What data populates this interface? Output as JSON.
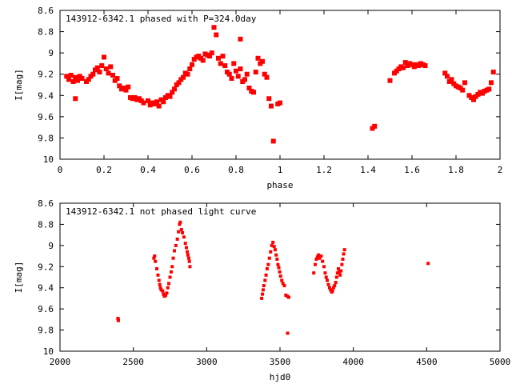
{
  "chart_data": [
    {
      "type": "scatter",
      "title": "143912-6342.1 phased with P=324.0day",
      "xlabel": "phase",
      "ylabel": "I[mag]",
      "xlim": [
        0,
        2
      ],
      "ylim": [
        10,
        8.6
      ],
      "y_inverted": true,
      "grid": false,
      "x_ticks": [
        "0",
        "0.2",
        "0.4",
        "0.6",
        "0.8",
        "1",
        "1.2",
        "1.4",
        "1.6",
        "1.8",
        "2"
      ],
      "y_ticks": [
        "8.6",
        "8.8",
        "9",
        "9.2",
        "9.4",
        "9.6",
        "9.8",
        "10"
      ],
      "series": [
        {
          "color": "#ff0000",
          "points": [
            [
              0.03,
              9.22
            ],
            [
              0.04,
              9.25
            ],
            [
              0.05,
              9.21
            ],
            [
              0.06,
              9.27
            ],
            [
              0.07,
              9.23
            ],
            [
              0.07,
              9.43
            ],
            [
              0.08,
              9.26
            ],
            [
              0.09,
              9.22
            ],
            [
              0.1,
              9.24
            ],
            [
              0.12,
              9.27
            ],
            [
              0.13,
              9.25
            ],
            [
              0.14,
              9.22
            ],
            [
              0.15,
              9.2
            ],
            [
              0.16,
              9.16
            ],
            [
              0.17,
              9.14
            ],
            [
              0.18,
              9.18
            ],
            [
              0.19,
              9.12
            ],
            [
              0.2,
              9.04
            ],
            [
              0.21,
              9.15
            ],
            [
              0.22,
              9.19
            ],
            [
              0.23,
              9.13
            ],
            [
              0.24,
              9.21
            ],
            [
              0.25,
              9.26
            ],
            [
              0.26,
              9.24
            ],
            [
              0.27,
              9.31
            ],
            [
              0.28,
              9.34
            ],
            [
              0.29,
              9.33
            ],
            [
              0.3,
              9.35
            ],
            [
              0.31,
              9.32
            ],
            [
              0.32,
              9.42
            ],
            [
              0.33,
              9.43
            ],
            [
              0.34,
              9.42
            ],
            [
              0.35,
              9.44
            ],
            [
              0.36,
              9.43
            ],
            [
              0.37,
              9.45
            ],
            [
              0.38,
              9.47
            ],
            [
              0.4,
              9.45
            ],
            [
              0.41,
              9.49
            ],
            [
              0.42,
              9.47
            ],
            [
              0.43,
              9.48
            ],
            [
              0.44,
              9.46
            ],
            [
              0.45,
              9.5
            ],
            [
              0.46,
              9.44
            ],
            [
              0.47,
              9.46
            ],
            [
              0.48,
              9.42
            ],
            [
              0.49,
              9.4
            ],
            [
              0.5,
              9.41
            ],
            [
              0.51,
              9.37
            ],
            [
              0.52,
              9.34
            ],
            [
              0.53,
              9.3
            ],
            [
              0.54,
              9.28
            ],
            [
              0.55,
              9.25
            ],
            [
              0.56,
              9.23
            ],
            [
              0.57,
              9.19
            ],
            [
              0.58,
              9.2
            ],
            [
              0.59,
              9.15
            ],
            [
              0.6,
              9.11
            ],
            [
              0.61,
              9.06
            ],
            [
              0.62,
              9.04
            ],
            [
              0.63,
              9.03
            ],
            [
              0.64,
              9.05
            ],
            [
              0.65,
              9.07
            ],
            [
              0.66,
              9.01
            ],
            [
              0.67,
              9.02
            ],
            [
              0.68,
              9.03
            ],
            [
              0.69,
              9.0
            ],
            [
              0.7,
              8.76
            ],
            [
              0.71,
              8.83
            ],
            [
              0.72,
              9.05
            ],
            [
              0.73,
              9.1
            ],
            [
              0.74,
              9.03
            ],
            [
              0.75,
              9.12
            ],
            [
              0.76,
              9.18
            ],
            [
              0.77,
              9.2
            ],
            [
              0.78,
              9.24
            ],
            [
              0.79,
              9.1
            ],
            [
              0.8,
              9.17
            ],
            [
              0.81,
              9.22
            ],
            [
              0.82,
              9.15
            ],
            [
              0.82,
              8.87
            ],
            [
              0.83,
              9.27
            ],
            [
              0.84,
              9.25
            ],
            [
              0.85,
              9.2
            ],
            [
              0.86,
              9.33
            ],
            [
              0.87,
              9.36
            ],
            [
              0.88,
              9.37
            ],
            [
              0.89,
              9.18
            ],
            [
              0.9,
              9.05
            ],
            [
              0.91,
              9.1
            ],
            [
              0.92,
              9.08
            ],
            [
              0.93,
              9.2
            ],
            [
              0.94,
              9.23
            ],
            [
              0.95,
              9.43
            ],
            [
              0.96,
              9.5
            ],
            [
              0.97,
              9.83
            ],
            [
              0.99,
              9.48
            ],
            [
              1.0,
              9.47
            ],
            [
              1.42,
              9.71
            ],
            [
              1.43,
              9.69
            ],
            [
              1.5,
              9.26
            ],
            [
              1.52,
              9.19
            ],
            [
              1.53,
              9.17
            ],
            [
              1.54,
              9.15
            ],
            [
              1.55,
              9.13
            ],
            [
              1.56,
              9.14
            ],
            [
              1.57,
              9.09
            ],
            [
              1.58,
              9.12
            ],
            [
              1.59,
              9.1
            ],
            [
              1.6,
              9.11
            ],
            [
              1.61,
              9.13
            ],
            [
              1.62,
              9.11
            ],
            [
              1.63,
              9.12
            ],
            [
              1.64,
              9.1
            ],
            [
              1.65,
              9.11
            ],
            [
              1.66,
              9.12
            ],
            [
              1.75,
              9.19
            ],
            [
              1.76,
              9.22
            ],
            [
              1.77,
              9.27
            ],
            [
              1.78,
              9.25
            ],
            [
              1.79,
              9.29
            ],
            [
              1.8,
              9.31
            ],
            [
              1.81,
              9.32
            ],
            [
              1.82,
              9.33
            ],
            [
              1.83,
              9.35
            ],
            [
              1.84,
              9.28
            ],
            [
              1.86,
              9.4
            ],
            [
              1.87,
              9.42
            ],
            [
              1.88,
              9.44
            ],
            [
              1.89,
              9.41
            ],
            [
              1.9,
              9.39
            ],
            [
              1.91,
              9.37
            ],
            [
              1.92,
              9.38
            ],
            [
              1.93,
              9.36
            ],
            [
              1.94,
              9.35
            ],
            [
              1.95,
              9.34
            ],
            [
              1.96,
              9.28
            ],
            [
              1.97,
              9.18
            ]
          ]
        }
      ]
    },
    {
      "type": "scatter",
      "title": "143912-6342.1 not phased light curve",
      "xlabel": "hjd0",
      "ylabel": "I[mag]",
      "xlim": [
        2000,
        5000
      ],
      "ylim": [
        10,
        8.6
      ],
      "y_inverted": true,
      "grid": false,
      "x_ticks": [
        "2000",
        "2500",
        "3000",
        "3500",
        "4000",
        "4500",
        "5000"
      ],
      "y_ticks": [
        "8.6",
        "8.8",
        "9",
        "9.2",
        "9.4",
        "9.6",
        "9.8",
        "10"
      ],
      "series": [
        {
          "color": "#ff0000",
          "points": [
            [
              2395,
              9.69
            ],
            [
              2398,
              9.71
            ],
            [
              2397,
              9.7
            ],
            [
              2640,
              9.12
            ],
            [
              2645,
              9.1
            ],
            [
              2650,
              9.15
            ],
            [
              2660,
              9.22
            ],
            [
              2668,
              9.28
            ],
            [
              2675,
              9.33
            ],
            [
              2680,
              9.37
            ],
            [
              2685,
              9.4
            ],
            [
              2690,
              9.42
            ],
            [
              2700,
              9.43
            ],
            [
              2705,
              9.46
            ],
            [
              2712,
              9.48
            ],
            [
              2720,
              9.47
            ],
            [
              2728,
              9.45
            ],
            [
              2735,
              9.4
            ],
            [
              2742,
              9.36
            ],
            [
              2750,
              9.3
            ],
            [
              2758,
              9.25
            ],
            [
              2765,
              9.2
            ],
            [
              2772,
              9.12
            ],
            [
              2780,
              9.05
            ],
            [
              2790,
              9.0
            ],
            [
              2800,
              8.94
            ],
            [
              2808,
              8.87
            ],
            [
              2815,
              8.8
            ],
            [
              2820,
              8.78
            ],
            [
              2828,
              8.85
            ],
            [
              2835,
              8.88
            ],
            [
              2845,
              8.92
            ],
            [
              2855,
              8.98
            ],
            [
              2862,
              9.02
            ],
            [
              2868,
              9.06
            ],
            [
              2872,
              9.09
            ],
            [
              2878,
              9.12
            ],
            [
              2882,
              9.15
            ],
            [
              2886,
              9.2
            ],
            [
              3375,
              9.5
            ],
            [
              3380,
              9.46
            ],
            [
              3385,
              9.42
            ],
            [
              3390,
              9.38
            ],
            [
              3398,
              9.33
            ],
            [
              3405,
              9.28
            ],
            [
              3412,
              9.22
            ],
            [
              3420,
              9.18
            ],
            [
              3428,
              9.12
            ],
            [
              3436,
              9.06
            ],
            [
              3444,
              9.0
            ],
            [
              3452,
              8.97
            ],
            [
              3460,
              9.01
            ],
            [
              3467,
              9.04
            ],
            [
              3474,
              9.09
            ],
            [
              3480,
              9.13
            ],
            [
              3486,
              9.18
            ],
            [
              3492,
              9.21
            ],
            [
              3498,
              9.25
            ],
            [
              3504,
              9.29
            ],
            [
              3512,
              9.33
            ],
            [
              3520,
              9.36
            ],
            [
              3530,
              9.38
            ],
            [
              3540,
              9.47
            ],
            [
              3550,
              9.48
            ],
            [
              3560,
              9.49
            ],
            [
              3552,
              9.83
            ],
            [
              3730,
              9.26
            ],
            [
              3740,
              9.18
            ],
            [
              3748,
              9.13
            ],
            [
              3755,
              9.11
            ],
            [
              3762,
              9.09
            ],
            [
              3770,
              9.12
            ],
            [
              3780,
              9.1
            ],
            [
              3790,
              9.15
            ],
            [
              3800,
              9.2
            ],
            [
              3808,
              9.26
            ],
            [
              3815,
              9.3
            ],
            [
              3822,
              9.33
            ],
            [
              3830,
              9.37
            ],
            [
              3838,
              9.4
            ],
            [
              3845,
              9.42
            ],
            [
              3852,
              9.44
            ],
            [
              3858,
              9.43
            ],
            [
              3865,
              9.4
            ],
            [
              3872,
              9.38
            ],
            [
              3880,
              9.35
            ],
            [
              3886,
              9.3
            ],
            [
              3892,
              9.26
            ],
            [
              3898,
              9.22
            ],
            [
              3904,
              9.25
            ],
            [
              3910,
              9.28
            ],
            [
              3916,
              9.24
            ],
            [
              3922,
              9.18
            ],
            [
              3928,
              9.13
            ],
            [
              3934,
              9.08
            ],
            [
              3940,
              9.04
            ],
            [
              4510,
              9.17
            ]
          ]
        }
      ]
    }
  ]
}
